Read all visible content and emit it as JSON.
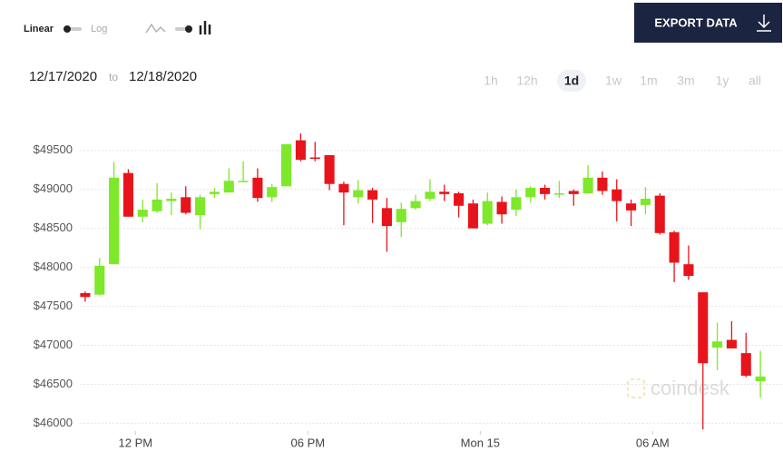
{
  "controls": {
    "scale_options": [
      "Linear",
      "Log"
    ],
    "export": "EXPORT DATA",
    "date_from": "12/17/2020",
    "date_sep": "to",
    "date_to": "12/18/2020",
    "ranges": [
      "1h",
      "12h",
      "1d",
      "1w",
      "1m",
      "3m",
      "1y",
      "all"
    ],
    "active_range": "1d",
    "watermark": "coindesk"
  },
  "chart_data": {
    "type": "candlestick",
    "up_color": "#7ee82a",
    "down_color": "#e8141b",
    "grid": true,
    "ylim": [
      45900,
      49800
    ],
    "yticks": [
      {
        "value": 46000,
        "label": "$46000"
      },
      {
        "value": 46500,
        "label": "$46500"
      },
      {
        "value": 47000,
        "label": "$47000"
      },
      {
        "value": 47500,
        "label": "$47500"
      },
      {
        "value": 48000,
        "label": "$48000"
      },
      {
        "value": 48500,
        "label": "$48500"
      },
      {
        "value": 49000,
        "label": "$49000"
      },
      {
        "value": 49500,
        "label": "$49500"
      }
    ],
    "xlim": [
      -0.5,
      47.5
    ],
    "xticks": [
      {
        "value": 3.5,
        "label": "12 PM"
      },
      {
        "value": 15.5,
        "label": "06 PM"
      },
      {
        "value": 27.5,
        "label": "Mon 15"
      },
      {
        "value": 39.5,
        "label": "06 AM"
      }
    ],
    "open": [
      47670,
      47650,
      48040,
      49210,
      48650,
      48720,
      48850,
      48900,
      48670,
      48940,
      48960,
      49100,
      49150,
      48900,
      49040,
      49630,
      49410,
      49440,
      49070,
      48900,
      48990,
      48760,
      48580,
      48760,
      48880,
      48970,
      48950,
      48820,
      48560,
      48840,
      48740,
      48900,
      49020,
      48940,
      48980,
      48950,
      49150,
      49000,
      48820,
      48800,
      48920,
      48450,
      48040,
      47680,
      46970,
      47070,
      46900,
      46540
    ],
    "high": [
      47690,
      48120,
      49350,
      49260,
      48870,
      49080,
      48960,
      49040,
      48930,
      49020,
      49270,
      49360,
      49270,
      49070,
      49580,
      49720,
      49610,
      49440,
      49100,
      49120,
      49020,
      48890,
      48830,
      48930,
      49130,
      49060,
      48970,
      48870,
      48960,
      48910,
      49000,
      49040,
      49060,
      49110,
      49000,
      49310,
      49230,
      49130,
      48870,
      49030,
      48950,
      48470,
      48280,
      47680,
      47290,
      47310,
      47160,
      46930
    ],
    "low": [
      47560,
      47640,
      48040,
      48650,
      48580,
      48700,
      48670,
      48680,
      48490,
      48890,
      48960,
      49100,
      48840,
      48840,
      49040,
      49360,
      49360,
      48990,
      48540,
      48820,
      48570,
      48200,
      48390,
      48740,
      48850,
      48850,
      48640,
      48500,
      48540,
      48560,
      48660,
      48830,
      48870,
      48890,
      48790,
      48950,
      48930,
      48590,
      48530,
      48680,
      48420,
      47810,
      47840,
      45920,
      46680,
      46960,
      46590,
      46330
    ],
    "close": [
      47620,
      48020,
      49150,
      48650,
      48740,
      48870,
      48880,
      48700,
      48900,
      48970,
      49110,
      49110,
      48890,
      49030,
      49580,
      49380,
      49400,
      49070,
      48960,
      48990,
      48870,
      48530,
      48750,
      48850,
      48970,
      48940,
      48790,
      48500,
      48850,
      48680,
      48900,
      49020,
      48940,
      48950,
      48940,
      49150,
      48980,
      48850,
      48730,
      48880,
      48440,
      48060,
      47890,
      46770,
      47050,
      46960,
      46610,
      46600
    ]
  }
}
